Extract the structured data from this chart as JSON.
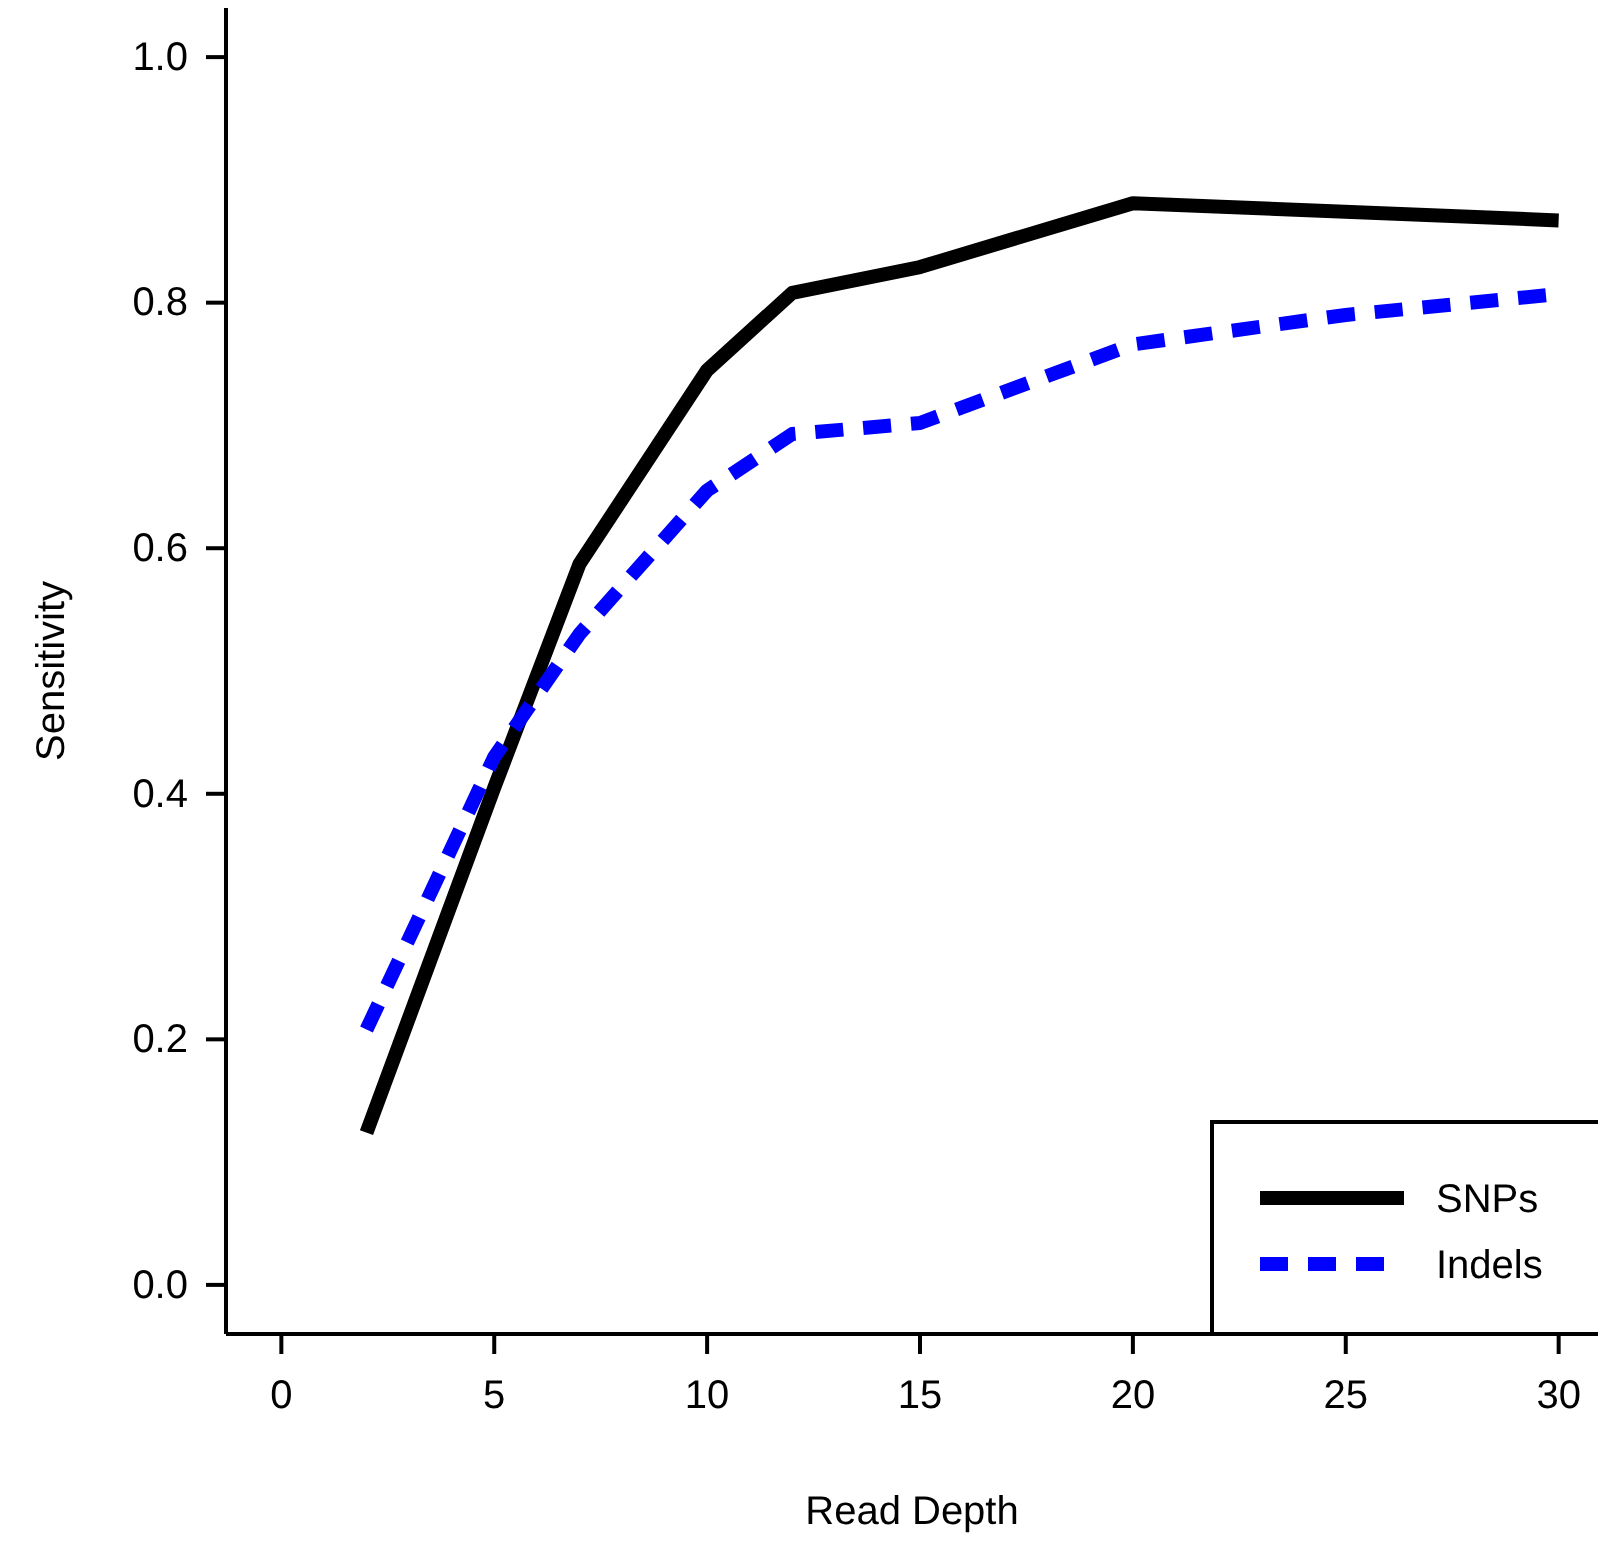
{
  "chart_data": {
    "type": "line",
    "xlabel": "Read Depth",
    "ylabel": "Sensitivity",
    "xlim": [
      -1.3,
      31.3
    ],
    "ylim": [
      -0.04,
      1.04
    ],
    "xticks": [
      0,
      5,
      10,
      15,
      20,
      25,
      30
    ],
    "yticks": [
      {
        "value": 0,
        "label": "0.0"
      },
      {
        "value": 0.2,
        "label": "0.2"
      },
      {
        "value": 0.4,
        "label": "0.4"
      },
      {
        "value": 0.6,
        "label": "0.6"
      },
      {
        "value": 0.8,
        "label": "0.8"
      },
      {
        "value": 1,
        "label": "1.0"
      }
    ],
    "grid": false,
    "legend": "bottom right",
    "marker": "none",
    "series": [
      {
        "name": "SNPs",
        "color": "#000000",
        "line_style": "solid",
        "x": [
          2,
          5,
          7,
          10,
          12,
          15,
          20,
          30
        ],
        "values": [
          0.124,
          0.405,
          0.587,
          0.745,
          0.808,
          0.829,
          0.881,
          0.867
        ]
      },
      {
        "name": "Indels",
        "color": "#0000ff",
        "line_style": "dashed",
        "x": [
          2,
          5,
          7,
          10,
          12,
          15,
          20,
          25,
          30
        ],
        "values": [
          0.208,
          0.43,
          0.53,
          0.647,
          0.693,
          0.702,
          0.766,
          0.79,
          0.807
        ]
      }
    ]
  }
}
